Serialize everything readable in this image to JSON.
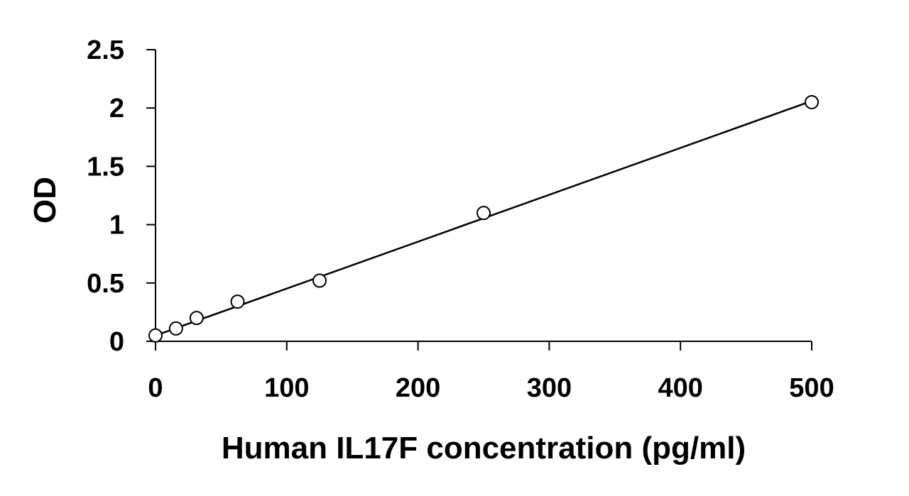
{
  "chart_data": {
    "type": "scatter",
    "title": "",
    "xlabel": "Human IL17F concentration (pg/ml)",
    "ylabel": "OD",
    "xlim": [
      0,
      500
    ],
    "ylim": [
      0,
      2.5
    ],
    "xticks": [
      0,
      100,
      200,
      300,
      400,
      500
    ],
    "xtick_labels": [
      "0",
      "100",
      "200",
      "300",
      "400",
      "500"
    ],
    "yticks": [
      0,
      0.5,
      1,
      1.5,
      2,
      2.5
    ],
    "ytick_labels": [
      "0",
      "0.5",
      "1",
      "1.5",
      "2",
      "2.5"
    ],
    "grid": false,
    "legend": "none",
    "series": [
      {
        "marker": "open-circle",
        "color": "#000000",
        "x": [
          0,
          15.6,
          31.3,
          62.5,
          125,
          250,
          500
        ],
        "y": [
          0.05,
          0.11,
          0.2,
          0.34,
          0.52,
          1.1,
          2.05
        ]
      }
    ],
    "trendline": {
      "type": "linear",
      "color": "#000000",
      "x": [
        0,
        500
      ],
      "y": [
        0.05,
        2.06
      ]
    }
  }
}
